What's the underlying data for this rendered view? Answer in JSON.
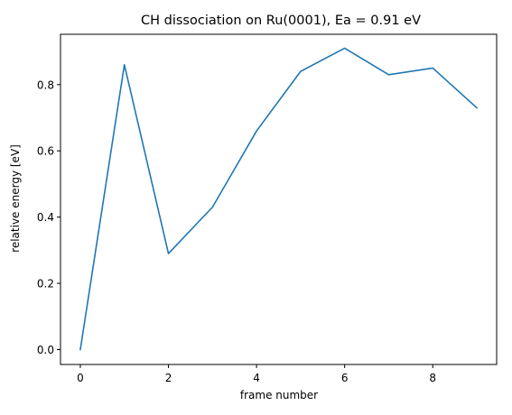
{
  "chart_data": {
    "type": "line",
    "title": "CH dissociation on Ru(0001), Ea = 0.91 eV",
    "xlabel": "frame number",
    "ylabel": "relative energy [eV]",
    "xlim": [
      -0.45,
      9.45
    ],
    "ylim": [
      -0.045,
      0.952
    ],
    "x_ticks": [
      0,
      2,
      4,
      6,
      8
    ],
    "x_tick_labels": [
      "0",
      "2",
      "4",
      "6",
      "8"
    ],
    "y_ticks": [
      0.0,
      0.2,
      0.4,
      0.6,
      0.8
    ],
    "y_tick_labels": [
      "0.0",
      "0.2",
      "0.4",
      "0.6",
      "0.8"
    ],
    "grid": false,
    "series": [
      {
        "color": "#1f77b4",
        "x": [
          0,
          1,
          2,
          3,
          4,
          5,
          6,
          7,
          8,
          9
        ],
        "y": [
          0.0,
          0.86,
          0.29,
          0.43,
          0.66,
          0.84,
          0.91,
          0.83,
          0.85,
          0.73
        ]
      }
    ]
  }
}
